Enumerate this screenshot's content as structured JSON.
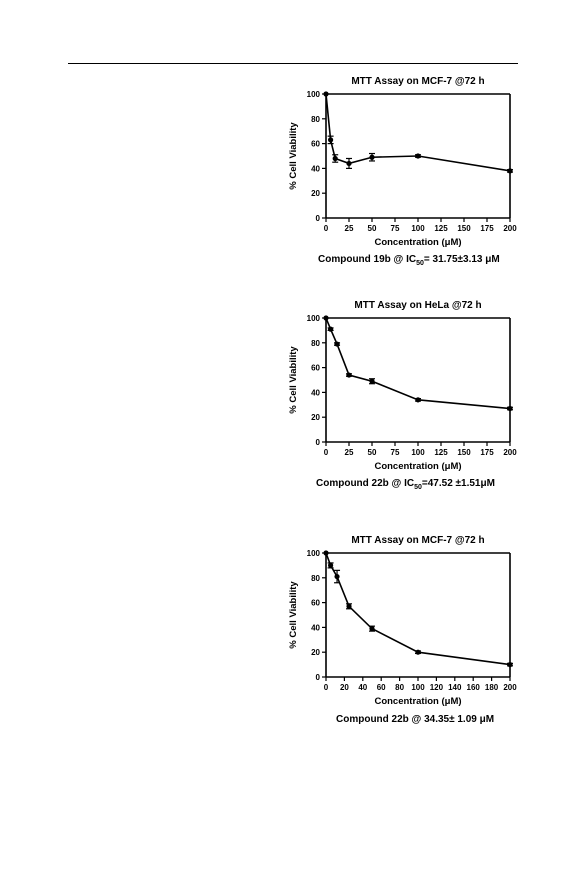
{
  "chart_data": [
    {
      "type": "line",
      "title": "MTT Assay on MCF-7 @72 h",
      "xlabel": "Concentration (μM)",
      "ylabel": "% Cell Viability",
      "xlim": [
        0,
        200
      ],
      "ylim": [
        0,
        100
      ],
      "x_ticks": [
        "0",
        "25",
        "50",
        "75",
        "100",
        "125",
        "150",
        "175",
        "200"
      ],
      "y_ticks": [
        "0",
        "20",
        "40",
        "60",
        "80",
        "100"
      ],
      "x": [
        0,
        5,
        10,
        25,
        50,
        100,
        200
      ],
      "series": [
        {
          "values": [
            100,
            63,
            48,
            44,
            49,
            50,
            38
          ],
          "errors": [
            0,
            3,
            3,
            4,
            3,
            1,
            1
          ]
        }
      ],
      "caption": {
        "pre": "Compound 19b @ IC",
        "sub": "50",
        "post": "= 31.75±3.13 μM"
      }
    },
    {
      "type": "line",
      "title": "MTT Assay on HeLa @72 h",
      "xlabel": "Concentration (μM)",
      "ylabel": "% Cell Viability",
      "xlim": [
        0,
        200
      ],
      "ylim": [
        0,
        100
      ],
      "x_ticks": [
        "0",
        "25",
        "50",
        "75",
        "100",
        "125",
        "150",
        "175",
        "200"
      ],
      "y_ticks": [
        "0",
        "20",
        "40",
        "60",
        "80",
        "100"
      ],
      "x": [
        0,
        5,
        12,
        25,
        50,
        100,
        200
      ],
      "series": [
        {
          "values": [
            100,
            91,
            79,
            54,
            49,
            34,
            27
          ],
          "errors": [
            0,
            1,
            1,
            1,
            2,
            1,
            1
          ]
        }
      ],
      "caption": {
        "pre": "Compound 22b @ IC",
        "sub": "50",
        "post": "=47.52 ±1.51μM"
      }
    },
    {
      "type": "line",
      "title": "MTT Assay on MCF-7 @72 h",
      "xlabel": "Concentration (μM)",
      "ylabel": "% Cell Viability",
      "xlim": [
        0,
        200
      ],
      "ylim": [
        0,
        100
      ],
      "x_ticks": [
        "0",
        "20",
        "40",
        "60",
        "80",
        "100",
        "120",
        "140",
        "160",
        "180",
        "200"
      ],
      "y_ticks": [
        "0",
        "20",
        "40",
        "60",
        "80",
        "100"
      ],
      "x": [
        0,
        5,
        12,
        25,
        50,
        100,
        200
      ],
      "series": [
        {
          "values": [
            100,
            90,
            81,
            57,
            39,
            20,
            10
          ],
          "errors": [
            0,
            2,
            5,
            2,
            2,
            1,
            1
          ]
        }
      ],
      "caption": {
        "pre": "Compound 22b @ 34.35± 1.09 μM",
        "sub": "",
        "post": ""
      }
    }
  ]
}
